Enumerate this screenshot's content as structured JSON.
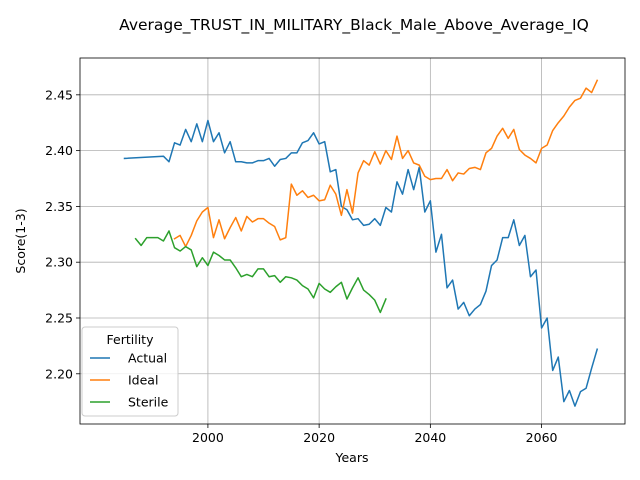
{
  "chart_data": {
    "type": "line",
    "title": "Average_TRUST_IN_MILITARY_Black_Male_Above_Average_IQ",
    "xlabel": "Years",
    "ylabel": "Score(1-3)",
    "xlim": [
      1977,
      2075
    ],
    "ylim": [
      2.155,
      2.483
    ],
    "grid": true,
    "x_ticks": [
      2000,
      2020,
      2040,
      2060
    ],
    "x_tick_labels": [
      "2000",
      "2020",
      "2040",
      "2060"
    ],
    "y_ticks": [
      2.2,
      2.25,
      2.3,
      2.35,
      2.4,
      2.45
    ],
    "y_tick_labels": [
      "2.20",
      "2.25",
      "2.30",
      "2.35",
      "2.40",
      "2.45"
    ],
    "legend": {
      "title": "Fertility",
      "placement": "lower-left"
    },
    "series": [
      {
        "name": "Actual",
        "color": "#1f77b4",
        "x": [
          1985,
          1992,
          1993,
          1994,
          1995,
          1996,
          1997,
          1998,
          1999,
          2000,
          2001,
          2002,
          2003,
          2004,
          2005,
          2006,
          2007,
          2008,
          2009,
          2010,
          2011,
          2012,
          2013,
          2014,
          2015,
          2016,
          2017,
          2018,
          2019,
          2020,
          2021,
          2022,
          2023,
          2024,
          2025,
          2026,
          2027,
          2028,
          2029,
          2030,
          2031,
          2032,
          2033,
          2034,
          2035,
          2036,
          2037,
          2038,
          2039,
          2040,
          2041,
          2042,
          2043,
          2044,
          2045,
          2046,
          2047,
          2048,
          2049,
          2050,
          2051,
          2052,
          2053,
          2054,
          2055,
          2056,
          2057,
          2058,
          2059,
          2060,
          2061,
          2062,
          2063,
          2064,
          2065,
          2066,
          2067,
          2068,
          2069,
          2070
        ],
        "y": [
          2.393,
          2.395,
          2.39,
          2.407,
          2.405,
          2.419,
          2.408,
          2.424,
          2.408,
          2.427,
          2.408,
          2.416,
          2.398,
          2.408,
          2.39,
          2.39,
          2.389,
          2.389,
          2.391,
          2.391,
          2.393,
          2.386,
          2.392,
          2.393,
          2.398,
          2.398,
          2.407,
          2.409,
          2.416,
          2.406,
          2.408,
          2.381,
          2.383,
          2.35,
          2.347,
          2.338,
          2.339,
          2.333,
          2.334,
          2.339,
          2.333,
          2.349,
          2.345,
          2.372,
          2.361,
          2.383,
          2.365,
          2.385,
          2.345,
          2.355,
          2.309,
          2.325,
          2.277,
          2.284,
          2.258,
          2.264,
          2.252,
          2.258,
          2.262,
          2.274,
          2.297,
          2.302,
          2.322,
          2.322,
          2.338,
          2.315,
          2.324,
          2.287,
          2.293,
          2.241,
          2.25,
          2.203,
          2.215,
          2.175,
          2.185,
          2.171,
          2.184,
          2.187,
          2.205,
          2.222
        ]
      },
      {
        "name": "Ideal",
        "color": "#ff7f0e",
        "x": [
          1994,
          1995,
          1996,
          1997,
          1998,
          1999,
          2000,
          2001,
          2002,
          2003,
          2004,
          2005,
          2006,
          2007,
          2008,
          2009,
          2010,
          2011,
          2012,
          2013,
          2014,
          2015,
          2016,
          2017,
          2018,
          2019,
          2020,
          2021,
          2022,
          2023,
          2024,
          2025,
          2026,
          2027,
          2028,
          2029,
          2030,
          2031,
          2032,
          2033,
          2034,
          2035,
          2036,
          2037,
          2038,
          2039,
          2040,
          2041,
          2042,
          2043,
          2044,
          2045,
          2046,
          2047,
          2048,
          2049,
          2050,
          2051,
          2052,
          2053,
          2054,
          2055,
          2056,
          2057,
          2058,
          2059,
          2060,
          2061,
          2062,
          2063,
          2064,
          2065,
          2066,
          2067,
          2068,
          2069,
          2070
        ],
        "y": [
          2.321,
          2.324,
          2.314,
          2.324,
          2.337,
          2.345,
          2.349,
          2.322,
          2.338,
          2.321,
          2.331,
          2.34,
          2.328,
          2.341,
          2.336,
          2.339,
          2.339,
          2.335,
          2.332,
          2.32,
          2.322,
          2.37,
          2.36,
          2.364,
          2.358,
          2.36,
          2.355,
          2.356,
          2.369,
          2.361,
          2.342,
          2.365,
          2.344,
          2.38,
          2.391,
          2.387,
          2.399,
          2.388,
          2.4,
          2.392,
          2.413,
          2.393,
          2.4,
          2.389,
          2.387,
          2.377,
          2.374,
          2.375,
          2.375,
          2.383,
          2.373,
          2.38,
          2.379,
          2.384,
          2.385,
          2.383,
          2.398,
          2.402,
          2.413,
          2.42,
          2.411,
          2.419,
          2.401,
          2.396,
          2.393,
          2.389,
          2.402,
          2.405,
          2.418,
          2.425,
          2.431,
          2.439,
          2.445,
          2.447,
          2.456,
          2.452,
          2.463
        ]
      },
      {
        "name": "Sterile",
        "color": "#2ca02c",
        "x": [
          1987,
          1988,
          1989,
          1990,
          1991,
          1992,
          1993,
          1994,
          1995,
          1996,
          1997,
          1998,
          1999,
          2000,
          2001,
          2002,
          2003,
          2004,
          2005,
          2006,
          2007,
          2008,
          2009,
          2010,
          2011,
          2012,
          2013,
          2014,
          2015,
          2016,
          2017,
          2018,
          2019,
          2020,
          2021,
          2022,
          2023,
          2024,
          2025,
          2026,
          2027,
          2028,
          2029,
          2030,
          2031,
          2032
        ],
        "y": [
          2.321,
          2.315,
          2.322,
          2.322,
          2.322,
          2.319,
          2.328,
          2.313,
          2.31,
          2.314,
          2.311,
          2.296,
          2.304,
          2.297,
          2.309,
          2.306,
          2.302,
          2.302,
          2.295,
          2.287,
          2.289,
          2.287,
          2.294,
          2.294,
          2.287,
          2.288,
          2.282,
          2.287,
          2.286,
          2.284,
          2.279,
          2.276,
          2.268,
          2.281,
          2.276,
          2.273,
          2.278,
          2.282,
          2.267,
          2.277,
          2.286,
          2.275,
          2.271,
          2.266,
          2.255,
          2.267
        ]
      }
    ]
  }
}
